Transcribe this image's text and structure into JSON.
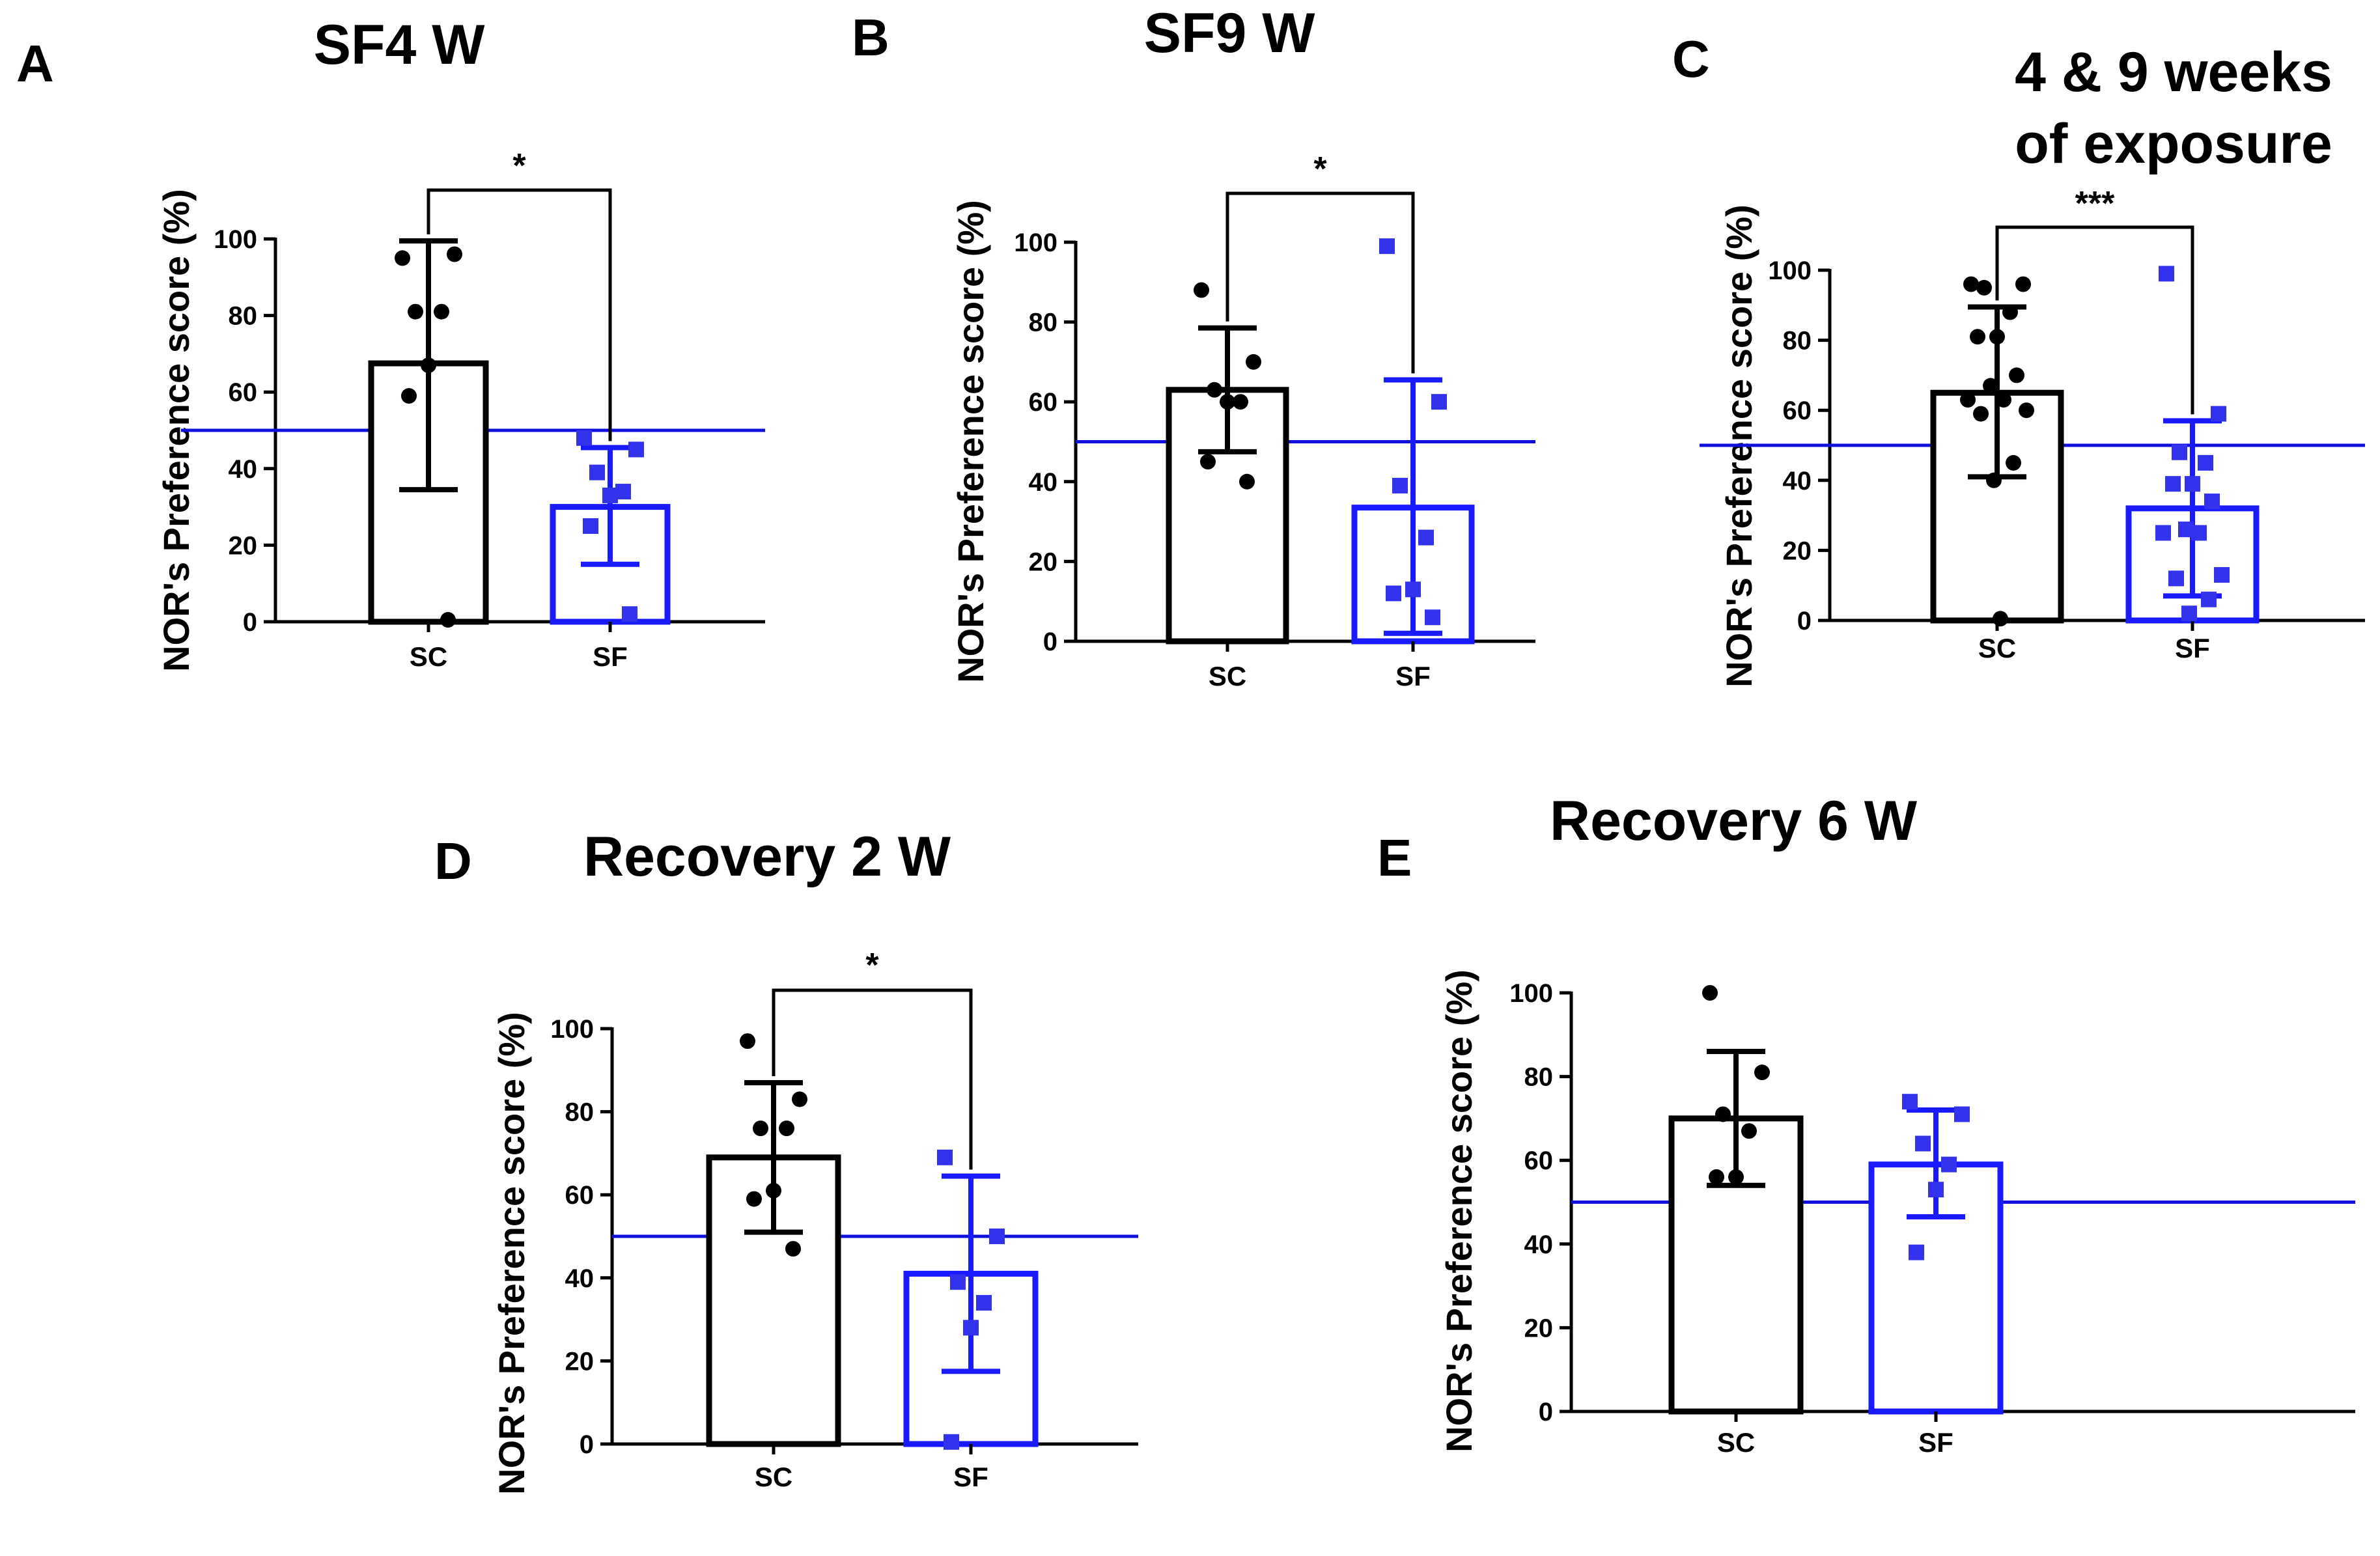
{
  "figure": {
    "accent_control": "#000000",
    "accent_treated": "#1a1aff",
    "ref_line_color": "#1010dd"
  },
  "chart_data": [
    {
      "panel": "A",
      "type": "bar",
      "title": "SF4 W",
      "ylabel": "NOR's Preference score (%)",
      "xlabel": "",
      "categories": [
        "SC",
        "SF"
      ],
      "ylim": [
        0,
        100
      ],
      "yticks": [
        0,
        20,
        40,
        60,
        80,
        100
      ],
      "ytick_labels": [
        "0",
        "20",
        "40",
        "60",
        "80",
        "100"
      ],
      "reference_line": 50,
      "series": [
        {
          "name": "SC",
          "mean": 67.5,
          "err_low": 34.5,
          "err_high": 99.5,
          "points": [
            95,
            96,
            81,
            81,
            67,
            59,
            0.5
          ]
        },
        {
          "name": "SF",
          "mean": 30,
          "err_low": 15,
          "err_high": 45.5,
          "points": [
            48,
            45,
            39,
            34,
            33,
            25,
            2
          ]
        }
      ],
      "significance": {
        "text": "*",
        "from": "SC",
        "to": "SF"
      }
    },
    {
      "panel": "B",
      "type": "bar",
      "title": "SF9 W",
      "ylabel": "NOR's Preference score (%)",
      "xlabel": "",
      "categories": [
        "SC",
        "SF"
      ],
      "ylim": [
        0,
        100
      ],
      "yticks": [
        0,
        20,
        40,
        60,
        80,
        100
      ],
      "ytick_labels": [
        "0",
        "20",
        "40",
        "60",
        "80",
        "100"
      ],
      "reference_line": 50,
      "series": [
        {
          "name": "SC",
          "mean": 63,
          "err_low": 47.5,
          "err_high": 78.5,
          "points": [
            88,
            70,
            63,
            60,
            60,
            45,
            40
          ]
        },
        {
          "name": "SF",
          "mean": 33.5,
          "err_low": 2,
          "err_high": 65.5,
          "points": [
            99,
            60,
            39,
            26,
            13,
            12,
            6
          ]
        }
      ],
      "significance": {
        "text": "*",
        "from": "SC",
        "to": "SF"
      }
    },
    {
      "panel": "C",
      "type": "bar",
      "title": "4 & 9 weeks of exposure",
      "title_lines": [
        "4 & 9 weeks",
        "of exposure"
      ],
      "ylabel": "NOR's Preference score (%)",
      "xlabel": "",
      "categories": [
        "SC",
        "SF"
      ],
      "ylim": [
        0,
        100
      ],
      "yticks": [
        0,
        20,
        40,
        60,
        80,
        100
      ],
      "ytick_labels": [
        "0",
        "20",
        "40",
        "60",
        "80",
        "100"
      ],
      "reference_line": 50,
      "series": [
        {
          "name": "SC",
          "mean": 65,
          "err_low": 41,
          "err_high": 89.5,
          "points": [
            96,
            96,
            95,
            88,
            81,
            81,
            70,
            67,
            63,
            63,
            60,
            59,
            45,
            40,
            0.5
          ]
        },
        {
          "name": "SF",
          "mean": 32,
          "err_low": 7,
          "err_high": 57,
          "points": [
            99,
            59,
            48,
            45,
            39,
            39,
            34,
            26,
            25,
            25,
            13,
            12,
            6,
            2
          ]
        }
      ],
      "significance": {
        "text": "***",
        "from": "SC",
        "to": "SF"
      }
    },
    {
      "panel": "D",
      "type": "bar",
      "title": "Recovery 2 W",
      "ylabel": "NOR's Preference score (%)",
      "xlabel": "",
      "categories": [
        "SC",
        "SF"
      ],
      "ylim": [
        0,
        100
      ],
      "yticks": [
        0,
        20,
        40,
        60,
        80,
        100
      ],
      "ytick_labels": [
        "0",
        "20",
        "40",
        "60",
        "80",
        "100"
      ],
      "reference_line": 50,
      "series": [
        {
          "name": "SC",
          "mean": 69,
          "err_low": 51,
          "err_high": 87,
          "points": [
            97,
            83,
            76,
            76,
            61,
            59,
            47
          ]
        },
        {
          "name": "SF",
          "mean": 41,
          "err_low": 17.5,
          "err_high": 64.5,
          "points": [
            69,
            50,
            39,
            34,
            28,
            0.5
          ]
        }
      ],
      "significance": {
        "text": "*",
        "from": "SC",
        "to": "SF"
      }
    },
    {
      "panel": "E",
      "type": "bar",
      "title": "Recovery 6 W",
      "ylabel": "NOR's Preference score (%)",
      "xlabel": "",
      "categories": [
        "SC",
        "SF"
      ],
      "ylim": [
        0,
        100
      ],
      "yticks": [
        0,
        20,
        40,
        60,
        80,
        100
      ],
      "ytick_labels": [
        "0",
        "20",
        "40",
        "60",
        "80",
        "100"
      ],
      "reference_line": 50,
      "series": [
        {
          "name": "SC",
          "mean": 70,
          "err_low": 54,
          "err_high": 86,
          "points": [
            100,
            81,
            71,
            67,
            56,
            56
          ]
        },
        {
          "name": "SF",
          "mean": 59,
          "err_low": 46.5,
          "err_high": 72,
          "points": [
            74,
            71,
            64,
            59,
            53,
            38
          ]
        }
      ],
      "significance": null
    }
  ]
}
